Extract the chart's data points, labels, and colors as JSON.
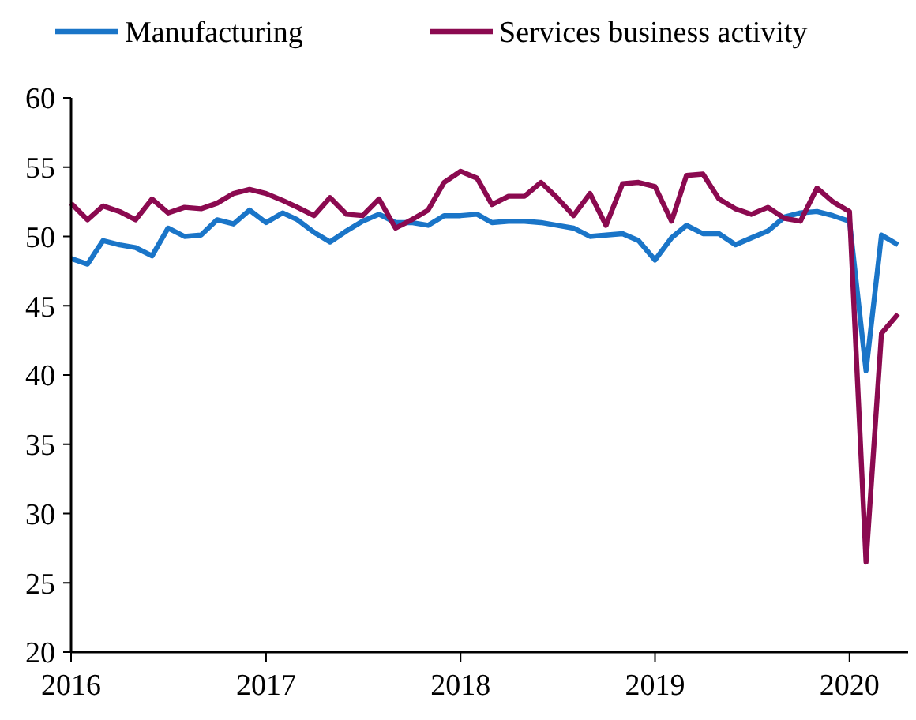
{
  "chart_data": {
    "type": "line",
    "x": [
      "2016-01",
      "2016-02",
      "2016-03",
      "2016-04",
      "2016-05",
      "2016-06",
      "2016-07",
      "2016-08",
      "2016-09",
      "2016-10",
      "2016-11",
      "2016-12",
      "2017-01",
      "2017-02",
      "2017-03",
      "2017-04",
      "2017-05",
      "2017-06",
      "2017-07",
      "2017-08",
      "2017-09",
      "2017-10",
      "2017-11",
      "2017-12",
      "2018-01",
      "2018-02",
      "2018-03",
      "2018-04",
      "2018-05",
      "2018-06",
      "2018-07",
      "2018-08",
      "2018-09",
      "2018-10",
      "2018-11",
      "2018-12",
      "2019-01",
      "2019-02",
      "2019-03",
      "2019-04",
      "2019-05",
      "2019-06",
      "2019-07",
      "2019-08",
      "2019-09",
      "2019-10",
      "2019-11",
      "2019-12",
      "2020-01",
      "2020-02",
      "2020-03",
      "2020-04"
    ],
    "series": [
      {
        "name": "Manufacturing",
        "color": "#1a75c8",
        "values": [
          48.4,
          48.0,
          49.7,
          49.4,
          49.2,
          48.6,
          50.6,
          50.0,
          50.1,
          51.2,
          50.9,
          51.9,
          51.0,
          51.7,
          51.2,
          50.3,
          49.6,
          50.4,
          51.1,
          51.6,
          51.0,
          51.0,
          50.8,
          51.5,
          51.5,
          51.6,
          51.0,
          51.1,
          51.1,
          51.0,
          50.8,
          50.6,
          50.0,
          50.1,
          50.2,
          49.7,
          48.3,
          49.9,
          50.8,
          50.2,
          50.2,
          49.4,
          49.9,
          50.4,
          51.4,
          51.7,
          51.8,
          51.5,
          51.1,
          40.3,
          50.1,
          49.4
        ]
      },
      {
        "name": "Services business activity",
        "color": "#8b0a50",
        "values": [
          52.4,
          51.2,
          52.2,
          51.8,
          51.2,
          52.7,
          51.7,
          52.1,
          52.0,
          52.4,
          53.1,
          53.4,
          53.1,
          52.6,
          52.1,
          51.5,
          52.8,
          51.6,
          51.5,
          52.7,
          50.6,
          51.2,
          51.9,
          53.9,
          54.7,
          54.2,
          52.3,
          52.9,
          52.9,
          53.9,
          52.8,
          51.5,
          53.1,
          50.8,
          53.8,
          53.9,
          53.6,
          51.1,
          54.4,
          54.5,
          52.7,
          52.0,
          51.6,
          52.1,
          51.3,
          51.1,
          53.5,
          52.5,
          51.8,
          26.5,
          43.0,
          44.4
        ]
      }
    ],
    "xlim": [
      "2016-01",
      "2020-04-20"
    ],
    "xticks": [
      {
        "value": "2016-01",
        "label": "2016"
      },
      {
        "value": "2017-01",
        "label": "2017"
      },
      {
        "value": "2018-01",
        "label": "2018"
      },
      {
        "value": "2019-01",
        "label": "2019"
      },
      {
        "value": "2020-01",
        "label": "2020"
      }
    ],
    "ylim": [
      20,
      60
    ],
    "yticks": [
      20,
      25,
      30,
      35,
      40,
      45,
      50,
      55,
      60
    ],
    "legend": "top",
    "grid": false,
    "marker": "none",
    "line_style": "solid"
  }
}
